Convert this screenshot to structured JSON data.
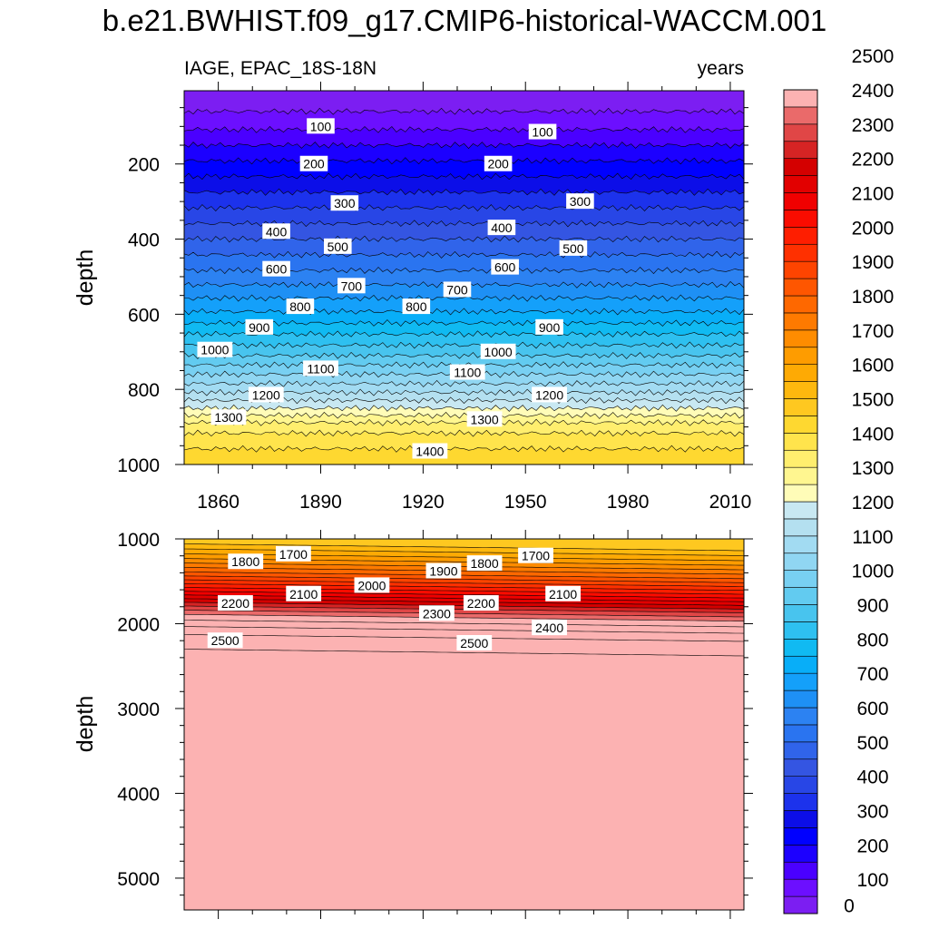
{
  "chart_data": [
    {
      "type": "contour",
      "panel": "upper",
      "title": "b.e21.BWHIST.f09_g17.CMIP6-historical-WACCM.001",
      "subtitle_left": "IAGE, EPAC_18S-18N",
      "subtitle_right": "years",
      "xlabel": "",
      "ylabel": "depth",
      "xlim": [
        1850,
        2014
      ],
      "ylim": [
        1000,
        5
      ],
      "xticks": [
        1860,
        1890,
        1920,
        1950,
        1980,
        2010
      ],
      "yticks": [
        200,
        400,
        600,
        800,
        1000
      ],
      "contour_interval": 50,
      "age_depth_profile": {
        "depth": [
          5,
          50,
          100,
          200,
          300,
          400,
          500,
          600,
          700,
          800,
          850,
          900,
          1000
        ],
        "age": [
          0,
          40,
          90,
          210,
          330,
          450,
          570,
          710,
          880,
          1080,
          1200,
          1330,
          1450
        ]
      },
      "contour_labels": [
        {
          "text": "100",
          "year": 1890,
          "depth": 100
        },
        {
          "text": "100",
          "year": 1955,
          "depth": 115
        },
        {
          "text": "200",
          "year": 1888,
          "depth": 200
        },
        {
          "text": "200",
          "year": 1942,
          "depth": 200
        },
        {
          "text": "300",
          "year": 1897,
          "depth": 305
        },
        {
          "text": "300",
          "year": 1966,
          "depth": 300
        },
        {
          "text": "400",
          "year": 1877,
          "depth": 380
        },
        {
          "text": "400",
          "year": 1943,
          "depth": 370
        },
        {
          "text": "500",
          "year": 1895,
          "depth": 420
        },
        {
          "text": "500",
          "year": 1964,
          "depth": 425
        },
        {
          "text": "600",
          "year": 1877,
          "depth": 480
        },
        {
          "text": "600",
          "year": 1944,
          "depth": 475
        },
        {
          "text": "700",
          "year": 1899,
          "depth": 525
        },
        {
          "text": "700",
          "year": 1930,
          "depth": 535
        },
        {
          "text": "800",
          "year": 1884,
          "depth": 580
        },
        {
          "text": "800",
          "year": 1918,
          "depth": 580
        },
        {
          "text": "900",
          "year": 1872,
          "depth": 635
        },
        {
          "text": "900",
          "year": 1957,
          "depth": 635
        },
        {
          "text": "1000",
          "year": 1859,
          "depth": 695
        },
        {
          "text": "1000",
          "year": 1942,
          "depth": 700
        },
        {
          "text": "1100",
          "year": 1890,
          "depth": 745
        },
        {
          "text": "1100",
          "year": 1933,
          "depth": 755
        },
        {
          "text": "1200",
          "year": 1874,
          "depth": 815
        },
        {
          "text": "1200",
          "year": 1957,
          "depth": 815
        },
        {
          "text": "1300",
          "year": 1863,
          "depth": 875
        },
        {
          "text": "1300",
          "year": 1938,
          "depth": 880
        },
        {
          "text": "1400",
          "year": 1922,
          "depth": 965
        }
      ]
    },
    {
      "type": "contour",
      "panel": "lower",
      "xlabel": "",
      "ylabel": "depth",
      "xlim": [
        1850,
        2014
      ],
      "ylim": [
        5375,
        1000
      ],
      "yticks": [
        1000,
        2000,
        3000,
        4000,
        5000
      ],
      "contour_interval": 50,
      "age_depth_profile": {
        "depth": [
          1000,
          1200,
          1400,
          1600,
          1800,
          1900,
          2000,
          2100,
          2200,
          2300,
          5375
        ],
        "age": [
          1450,
          1620,
          1810,
          2030,
          2260,
          2360,
          2430,
          2490,
          2525,
          2550,
          2600
        ]
      },
      "deepening_by_2014": 80,
      "contour_labels": [
        {
          "text": "1800",
          "year": 1868,
          "depth": 1270
        },
        {
          "text": "1700",
          "year": 1882,
          "depth": 1180
        },
        {
          "text": "2100",
          "year": 1885,
          "depth": 1650
        },
        {
          "text": "2000",
          "year": 1905,
          "depth": 1550
        },
        {
          "text": "1900",
          "year": 1926,
          "depth": 1380
        },
        {
          "text": "1800",
          "year": 1938,
          "depth": 1290
        },
        {
          "text": "1700",
          "year": 1953,
          "depth": 1200
        },
        {
          "text": "2200",
          "year": 1865,
          "depth": 1760
        },
        {
          "text": "2300",
          "year": 1924,
          "depth": 1880
        },
        {
          "text": "2200",
          "year": 1937,
          "depth": 1760
        },
        {
          "text": "2100",
          "year": 1961,
          "depth": 1650
        },
        {
          "text": "2400",
          "year": 1957,
          "depth": 2050
        },
        {
          "text": "2500",
          "year": 1862,
          "depth": 2200
        },
        {
          "text": "2500",
          "year": 1935,
          "depth": 2230
        }
      ]
    }
  ],
  "colorbar": {
    "labels": [
      "0",
      "100",
      "200",
      "300",
      "400",
      "500",
      "600",
      "700",
      "800",
      "900",
      "1000",
      "1100",
      "1200",
      "1300",
      "1400",
      "1500",
      "1600",
      "1700",
      "1800",
      "1900",
      "2000",
      "2100",
      "2200",
      "2300",
      "2400",
      "2500"
    ],
    "interval": 50,
    "colors": [
      "#7c1ef2",
      "#6c0fff",
      "#4a00ff",
      "#1c00ff",
      "#0000ff",
      "#0c0ee8",
      "#1c32ec",
      "#2846e6",
      "#3455e2",
      "#3064ea",
      "#2a74f0",
      "#2c82f2",
      "#1e90f5",
      "#14a0fa",
      "#08aef8",
      "#10baf2",
      "#2ec0f0",
      "#48c4ee",
      "#62cbf0",
      "#78d0f2",
      "#90d6f2",
      "#a2dbf2",
      "#b4e0f0",
      "#c8e8f2",
      "#fffcb8",
      "#fff690",
      "#ffee6e",
      "#ffe44c",
      "#fed830",
      "#fec820",
      "#feb80e",
      "#feaa04",
      "#fe9c00",
      "#fe8c00",
      "#fe7a00",
      "#fe6800",
      "#fe5600",
      "#fe4400",
      "#fe3000",
      "#fe1e00",
      "#fa0c00",
      "#f00000",
      "#e20000",
      "#d40000",
      "#d62424",
      "#e04646",
      "#ea6a6a",
      "#fcb2b2"
    ]
  }
}
